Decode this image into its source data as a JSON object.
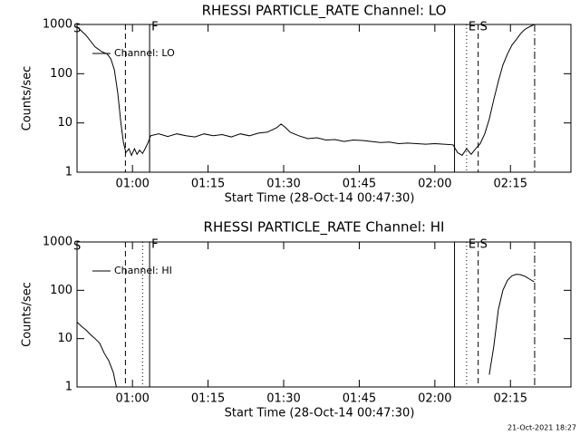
{
  "chart_data": [
    {
      "type": "line",
      "title": "RHESSI PARTICLE_RATE Channel: LO",
      "xlabel": "Start Time (28-Oct-14 00:47:30)",
      "ylabel": "Counts/sec",
      "log_y": true,
      "ylim": [
        1,
        1000
      ],
      "yticks": [
        1,
        10,
        100,
        1000
      ],
      "xlim": [
        49,
        147
      ],
      "xticks": [
        {
          "value": 60,
          "label": "01:00"
        },
        {
          "value": 75,
          "label": "01:15"
        },
        {
          "value": 90,
          "label": "01:30"
        },
        {
          "value": 105,
          "label": "01:45"
        },
        {
          "value": 120,
          "label": "02:00"
        },
        {
          "value": 135,
          "label": "02:15"
        }
      ],
      "x": [
        49.0,
        50.8,
        52.6,
        53.9,
        55.0,
        55.7,
        56.4,
        57.1,
        57.7,
        58.2,
        58.7,
        59.3,
        59.8,
        60.4,
        60.9,
        61.4,
        62.0,
        62.5,
        63.1,
        63.6,
        65.2,
        67.0,
        68.8,
        70.6,
        72.4,
        74.2,
        76.0,
        77.8,
        79.6,
        81.4,
        83.2,
        85.0,
        86.8,
        88.6,
        89.5,
        90.4,
        91.3,
        93.0,
        94.8,
        96.6,
        98.4,
        100.2,
        102.0,
        103.8,
        105.6,
        107.4,
        109.2,
        111.0,
        112.8,
        114.6,
        116.4,
        118.2,
        120.0,
        121.8,
        123.6,
        124.5,
        125.4,
        126.3,
        127.2,
        128.1,
        129.0,
        129.9,
        130.8,
        131.7,
        132.6,
        133.5,
        134.4,
        135.3,
        136.2,
        137.0,
        137.9,
        138.8,
        139.7
      ],
      "series": [
        {
          "name": "Channel: LO",
          "color": "#000000",
          "values": [
            900,
            600,
            350,
            280,
            250,
            200,
            120,
            40,
            10,
            4,
            2.5,
            3,
            2.2,
            3,
            2.3,
            2.8,
            2.4,
            3,
            4,
            5.5,
            6,
            5.3,
            6,
            5.5,
            5.2,
            6,
            5.5,
            5.8,
            5.2,
            6,
            5.5,
            6.2,
            6.5,
            8,
            9.5,
            8,
            6.5,
            5.5,
            4.8,
            5,
            4.5,
            4.6,
            4.2,
            4.5,
            4.4,
            4.2,
            4,
            4.1,
            3.8,
            3.9,
            3.8,
            3.7,
            3.8,
            3.7,
            3.6,
            2.5,
            2.2,
            3,
            2.3,
            3,
            3.8,
            6,
            12,
            30,
            70,
            150,
            250,
            380,
            500,
            650,
            800,
            900,
            1000
          ]
        }
      ],
      "markers": [
        {
          "x": 58.6,
          "style": "dashed"
        },
        {
          "x": 63.4,
          "style": "solid",
          "label": "F"
        },
        {
          "x": 123.9,
          "style": "solid"
        },
        {
          "x": 126.3,
          "style": "dotted",
          "label": "E"
        },
        {
          "x": 128.6,
          "style": "dashed",
          "label": "S"
        },
        {
          "x": 139.8,
          "style": "dashdot"
        }
      ],
      "corner_label": "S"
    },
    {
      "type": "line",
      "title": "RHESSI PARTICLE_RATE Channel: HI",
      "xlabel": "Start Time (28-Oct-14 00:47:30)",
      "ylabel": "Counts/sec",
      "log_y": true,
      "ylim": [
        1,
        1000
      ],
      "yticks": [
        1,
        10,
        100,
        1000
      ],
      "xlim": [
        49,
        147
      ],
      "xticks": [
        {
          "value": 60,
          "label": "01:00"
        },
        {
          "value": 75,
          "label": "01:15"
        },
        {
          "value": 90,
          "label": "01:30"
        },
        {
          "value": 105,
          "label": "01:45"
        },
        {
          "value": 120,
          "label": "02:00"
        },
        {
          "value": 135,
          "label": "02:15"
        }
      ],
      "x": [
        49.0,
        49.9,
        50.8,
        51.7,
        52.6,
        53.5,
        54.4,
        55.3,
        56.2,
        56.8,
        95.0,
        130.8,
        131.7,
        132.6,
        133.5,
        134.4,
        135.3,
        136.2,
        137.0,
        137.9,
        138.8,
        139.7
      ],
      "series": [
        {
          "name": "Channel: HI",
          "color": "#000000",
          "values": [
            22,
            18,
            15,
            12,
            10,
            8,
            5,
            3.5,
            2,
            1,
            null,
            1.8,
            7,
            40,
            100,
            160,
            200,
            215,
            210,
            195,
            170,
            150
          ]
        }
      ],
      "markers": [
        {
          "x": 58.6,
          "style": "dashed"
        },
        {
          "x": 62.0,
          "style": "dotted"
        },
        {
          "x": 63.4,
          "style": "solid",
          "label": "F"
        },
        {
          "x": 123.9,
          "style": "solid"
        },
        {
          "x": 126.3,
          "style": "dotted",
          "label": "E"
        },
        {
          "x": 128.6,
          "style": "dashed",
          "label": "S"
        },
        {
          "x": 139.8,
          "style": "dashdot"
        }
      ],
      "corner_label": "S"
    }
  ],
  "footer": "21-Oct-2021 18:27"
}
